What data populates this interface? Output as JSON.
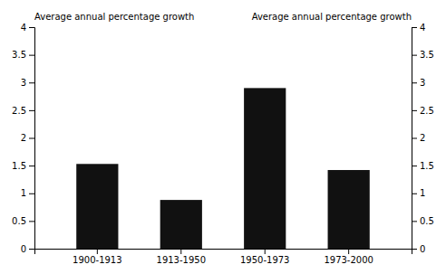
{
  "chart_data": {
    "type": "bar",
    "categories": [
      "1900-1913",
      "1913-1950",
      "1950-1973",
      "1973-2000"
    ],
    "values": [
      1.53,
      0.88,
      2.9,
      1.42
    ],
    "color": "#111111",
    "ylabel": "Average annual percentage growth",
    "y2label": "Average annual percentage growth",
    "ylim": [
      0,
      4
    ],
    "yticks": [
      0,
      0.5,
      1,
      1.5,
      2,
      2.5,
      3,
      3.5,
      4
    ],
    "y2lim": [
      0,
      4
    ],
    "y2ticks": [
      0,
      0.5,
      1,
      1.5,
      2,
      2.5,
      3,
      3.5,
      4
    ],
    "grid": false
  }
}
